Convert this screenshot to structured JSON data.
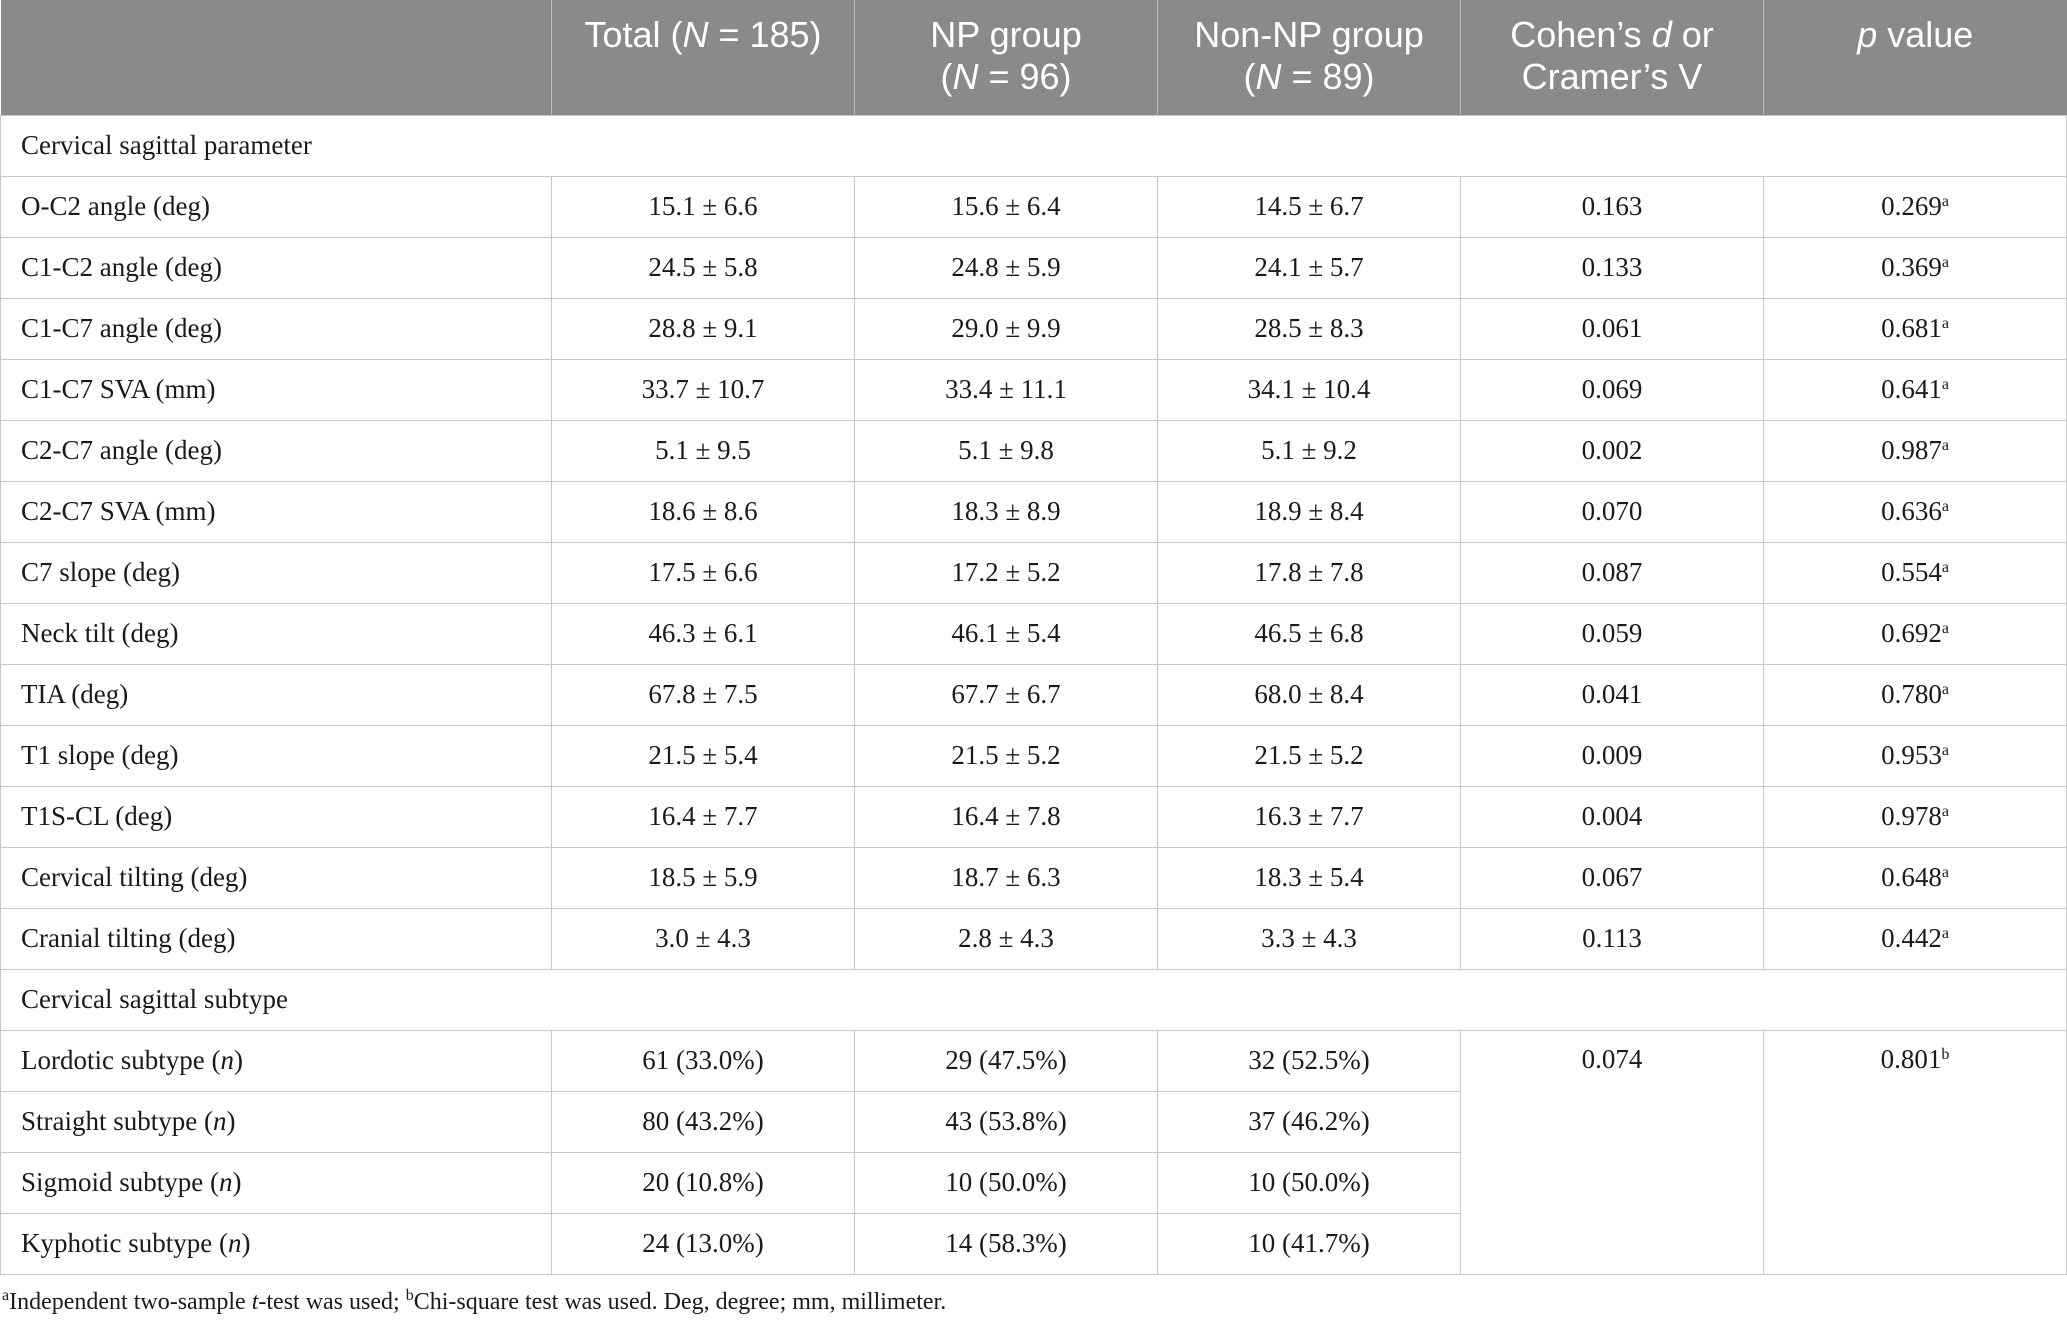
{
  "header": {
    "col0": "",
    "col1_a": "Total (",
    "col1_n": "N",
    "col1_b": " = 185)",
    "col2_l1": "NP group",
    "col2_a": "(",
    "col2_n": "N",
    "col2_b": " = 96)",
    "col3_l1": "Non-NP group",
    "col3_a": "(",
    "col3_n": "N",
    "col3_b": " = 89)",
    "col4_a": "Cohen’s ",
    "col4_d": "d",
    "col4_b": " or",
    "col4_l2": "Cramer’s V",
    "col5_p": "p",
    "col5_b": " value"
  },
  "section1": "Cervical sagittal parameter",
  "rows1": [
    {
      "label": "O-C2 angle (deg)",
      "total": "15.1 ± 6.6",
      "np": "15.6 ± 6.4",
      "nonnp": "14.5 ± 6.7",
      "d": "0.163",
      "p": "0.269",
      "sup": "a"
    },
    {
      "label": "C1-C2 angle (deg)",
      "total": "24.5 ± 5.8",
      "np": "24.8 ± 5.9",
      "nonnp": "24.1 ± 5.7",
      "d": "0.133",
      "p": "0.369",
      "sup": "a"
    },
    {
      "label": "C1-C7 angle (deg)",
      "total": "28.8 ± 9.1",
      "np": "29.0 ± 9.9",
      "nonnp": "28.5 ± 8.3",
      "d": "0.061",
      "p": "0.681",
      "sup": "a"
    },
    {
      "label": "C1-C7 SVA (mm)",
      "total": "33.7 ± 10.7",
      "np": "33.4 ± 11.1",
      "nonnp": "34.1 ± 10.4",
      "d": "0.069",
      "p": "0.641",
      "sup": "a"
    },
    {
      "label": "C2-C7 angle (deg)",
      "total": "5.1 ± 9.5",
      "np": "5.1 ± 9.8",
      "nonnp": "5.1 ± 9.2",
      "d": "0.002",
      "p": "0.987",
      "sup": "a"
    },
    {
      "label": "C2-C7 SVA (mm)",
      "total": "18.6 ± 8.6",
      "np": "18.3 ± 8.9",
      "nonnp": "18.9 ± 8.4",
      "d": "0.070",
      "p": "0.636",
      "sup": "a"
    },
    {
      "label": "C7 slope (deg)",
      "total": "17.5 ± 6.6",
      "np": "17.2 ± 5.2",
      "nonnp": "17.8 ± 7.8",
      "d": "0.087",
      "p": "0.554",
      "sup": "a"
    },
    {
      "label": "Neck tilt (deg)",
      "total": "46.3 ± 6.1",
      "np": "46.1 ± 5.4",
      "nonnp": "46.5 ± 6.8",
      "d": "0.059",
      "p": "0.692",
      "sup": "a"
    },
    {
      "label": "TIA (deg)",
      "total": "67.8 ± 7.5",
      "np": "67.7 ± 6.7",
      "nonnp": "68.0 ± 8.4",
      "d": "0.041",
      "p": "0.780",
      "sup": "a"
    },
    {
      "label": "T1 slope (deg)",
      "total": "21.5 ± 5.4",
      "np": "21.5 ± 5.2",
      "nonnp": "21.5 ± 5.2",
      "d": "0.009",
      "p": "0.953",
      "sup": "a"
    },
    {
      "label": "T1S-CL (deg)",
      "total": "16.4 ± 7.7",
      "np": "16.4 ± 7.8",
      "nonnp": "16.3 ± 7.7",
      "d": "0.004",
      "p": "0.978",
      "sup": "a"
    },
    {
      "label": "Cervical tilting (deg)",
      "total": "18.5 ± 5.9",
      "np": "18.7 ± 6.3",
      "nonnp": "18.3 ± 5.4",
      "d": "0.067",
      "p": "0.648",
      "sup": "a"
    },
    {
      "label": "Cranial tilting (deg)",
      "total": "3.0 ± 4.3",
      "np": "2.8 ± 4.3",
      "nonnp": "3.3 ± 4.3",
      "d": "0.113",
      "p": "0.442",
      "sup": "a"
    }
  ],
  "section2": "Cervical sagittal subtype",
  "rows2": [
    {
      "label": "Lordotic subtype (",
      "n": "n",
      "close": ")",
      "total": "61 (33.0%)",
      "np": "29 (47.5%)",
      "nonnp": "32 (52.5%)"
    },
    {
      "label": "Straight subtype (",
      "n": "n",
      "close": ")",
      "total": "80 (43.2%)",
      "np": "43 (53.8%)",
      "nonnp": "37 (46.2%)"
    },
    {
      "label": "Sigmoid subtype (",
      "n": "n",
      "close": ")",
      "total": "20 (10.8%)",
      "np": "10 (50.0%)",
      "nonnp": "10 (50.0%)"
    },
    {
      "label": "Kyphotic subtype (",
      "n": "n",
      "close": ")",
      "total": "24 (13.0%)",
      "np": "14 (58.3%)",
      "nonnp": "10 (41.7%)"
    }
  ],
  "subtype_stats": {
    "d": "0.074",
    "p": "0.801",
    "sup": "b"
  },
  "footnote": {
    "sup_a": "a",
    "part1": "Independent two-sample ",
    "t": "t",
    "part2": "-test was used; ",
    "sup_b": "b",
    "part3": "Chi-square test was used. Deg, degree; mm, millimeter."
  }
}
